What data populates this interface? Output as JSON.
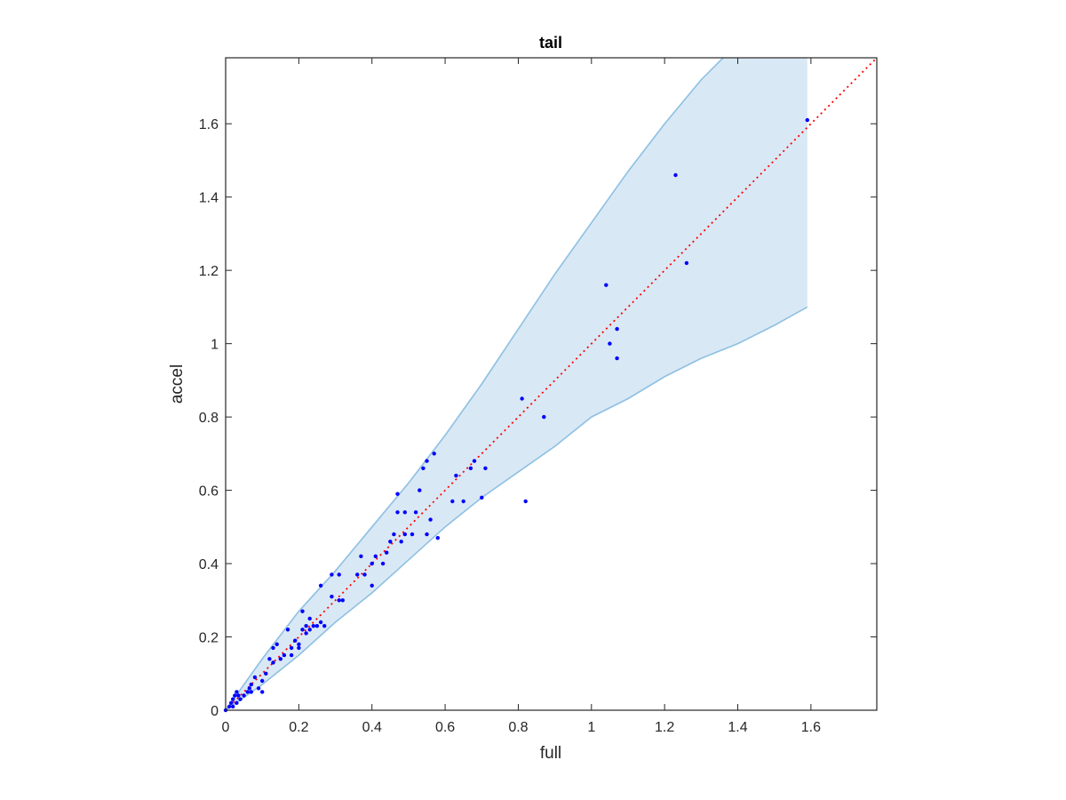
{
  "chart_data": {
    "type": "scatter",
    "title": "tail",
    "xlabel": "full",
    "ylabel": "accel",
    "xlim": [
      0,
      1.78
    ],
    "ylim": [
      0,
      1.78
    ],
    "xticks": [
      "0",
      "0.2",
      "0.4",
      "0.6",
      "0.8",
      "1",
      "1.2",
      "1.4",
      "1.6"
    ],
    "yticks": [
      "0",
      "0.2",
      "0.4",
      "0.6",
      "0.8",
      "1",
      "1.2",
      "1.4",
      "1.6"
    ],
    "grid": false,
    "colors": {
      "points": "#0000ff",
      "reference": "#ff0000",
      "band_fill": "#d9e8f5",
      "band_edge": "#8dc0e2"
    },
    "reference_line": {
      "style": "dotted",
      "from": [
        0,
        0
      ],
      "to": [
        1.78,
        1.78
      ]
    },
    "band": {
      "upper": [
        [
          0,
          0
        ],
        [
          0.1,
          0.14
        ],
        [
          0.2,
          0.27
        ],
        [
          0.3,
          0.38
        ],
        [
          0.4,
          0.5
        ],
        [
          0.5,
          0.62
        ],
        [
          0.6,
          0.75
        ],
        [
          0.7,
          0.89
        ],
        [
          0.8,
          1.04
        ],
        [
          0.9,
          1.19
        ],
        [
          1.0,
          1.33
        ],
        [
          1.1,
          1.47
        ],
        [
          1.2,
          1.6
        ],
        [
          1.3,
          1.72
        ],
        [
          1.36,
          1.78
        ],
        [
          1.59,
          1.78
        ]
      ],
      "lower": [
        [
          0,
          0
        ],
        [
          0.1,
          0.07
        ],
        [
          0.2,
          0.15
        ],
        [
          0.3,
          0.24
        ],
        [
          0.4,
          0.32
        ],
        [
          0.5,
          0.41
        ],
        [
          0.6,
          0.5
        ],
        [
          0.7,
          0.58
        ],
        [
          0.8,
          0.65
        ],
        [
          0.9,
          0.72
        ],
        [
          1.0,
          0.8
        ],
        [
          1.1,
          0.85
        ],
        [
          1.2,
          0.91
        ],
        [
          1.3,
          0.96
        ],
        [
          1.4,
          1.0
        ],
        [
          1.5,
          1.05
        ],
        [
          1.59,
          1.1
        ]
      ]
    },
    "points": [
      [
        0.0,
        0.0
      ],
      [
        0.01,
        0.01
      ],
      [
        0.015,
        0.02
      ],
      [
        0.02,
        0.01
      ],
      [
        0.02,
        0.03
      ],
      [
        0.025,
        0.04
      ],
      [
        0.03,
        0.02
      ],
      [
        0.03,
        0.05
      ],
      [
        0.035,
        0.04
      ],
      [
        0.04,
        0.03
      ],
      [
        0.05,
        0.04
      ],
      [
        0.06,
        0.05
      ],
      [
        0.065,
        0.06
      ],
      [
        0.07,
        0.07
      ],
      [
        0.07,
        0.05
      ],
      [
        0.08,
        0.09
      ],
      [
        0.09,
        0.06
      ],
      [
        0.1,
        0.08
      ],
      [
        0.1,
        0.05
      ],
      [
        0.11,
        0.1
      ],
      [
        0.12,
        0.14
      ],
      [
        0.13,
        0.17
      ],
      [
        0.13,
        0.13
      ],
      [
        0.14,
        0.18
      ],
      [
        0.15,
        0.14
      ],
      [
        0.16,
        0.15
      ],
      [
        0.17,
        0.22
      ],
      [
        0.18,
        0.17
      ],
      [
        0.18,
        0.15
      ],
      [
        0.19,
        0.19
      ],
      [
        0.2,
        0.17
      ],
      [
        0.2,
        0.18
      ],
      [
        0.21,
        0.22
      ],
      [
        0.21,
        0.27
      ],
      [
        0.22,
        0.21
      ],
      [
        0.22,
        0.23
      ],
      [
        0.23,
        0.25
      ],
      [
        0.23,
        0.22
      ],
      [
        0.24,
        0.23
      ],
      [
        0.25,
        0.23
      ],
      [
        0.26,
        0.24
      ],
      [
        0.26,
        0.34
      ],
      [
        0.27,
        0.23
      ],
      [
        0.29,
        0.31
      ],
      [
        0.29,
        0.37
      ],
      [
        0.31,
        0.37
      ],
      [
        0.31,
        0.3
      ],
      [
        0.32,
        0.3
      ],
      [
        0.36,
        0.37
      ],
      [
        0.37,
        0.42
      ],
      [
        0.38,
        0.37
      ],
      [
        0.4,
        0.4
      ],
      [
        0.4,
        0.34
      ],
      [
        0.41,
        0.42
      ],
      [
        0.43,
        0.4
      ],
      [
        0.44,
        0.43
      ],
      [
        0.45,
        0.46
      ],
      [
        0.46,
        0.48
      ],
      [
        0.47,
        0.54
      ],
      [
        0.47,
        0.59
      ],
      [
        0.48,
        0.46
      ],
      [
        0.49,
        0.54
      ],
      [
        0.49,
        0.48
      ],
      [
        0.51,
        0.48
      ],
      [
        0.52,
        0.54
      ],
      [
        0.53,
        0.6
      ],
      [
        0.54,
        0.66
      ],
      [
        0.55,
        0.68
      ],
      [
        0.55,
        0.48
      ],
      [
        0.56,
        0.52
      ],
      [
        0.57,
        0.7
      ],
      [
        0.58,
        0.47
      ],
      [
        0.62,
        0.57
      ],
      [
        0.63,
        0.64
      ],
      [
        0.65,
        0.57
      ],
      [
        0.67,
        0.66
      ],
      [
        0.68,
        0.68
      ],
      [
        0.7,
        0.58
      ],
      [
        0.71,
        0.66
      ],
      [
        0.81,
        0.85
      ],
      [
        0.82,
        0.57
      ],
      [
        0.87,
        0.8
      ],
      [
        1.04,
        1.16
      ],
      [
        1.05,
        1.0
      ],
      [
        1.07,
        1.04
      ],
      [
        1.07,
        0.96
      ],
      [
        1.23,
        1.46
      ],
      [
        1.26,
        1.22
      ],
      [
        1.59,
        1.61
      ]
    ]
  }
}
